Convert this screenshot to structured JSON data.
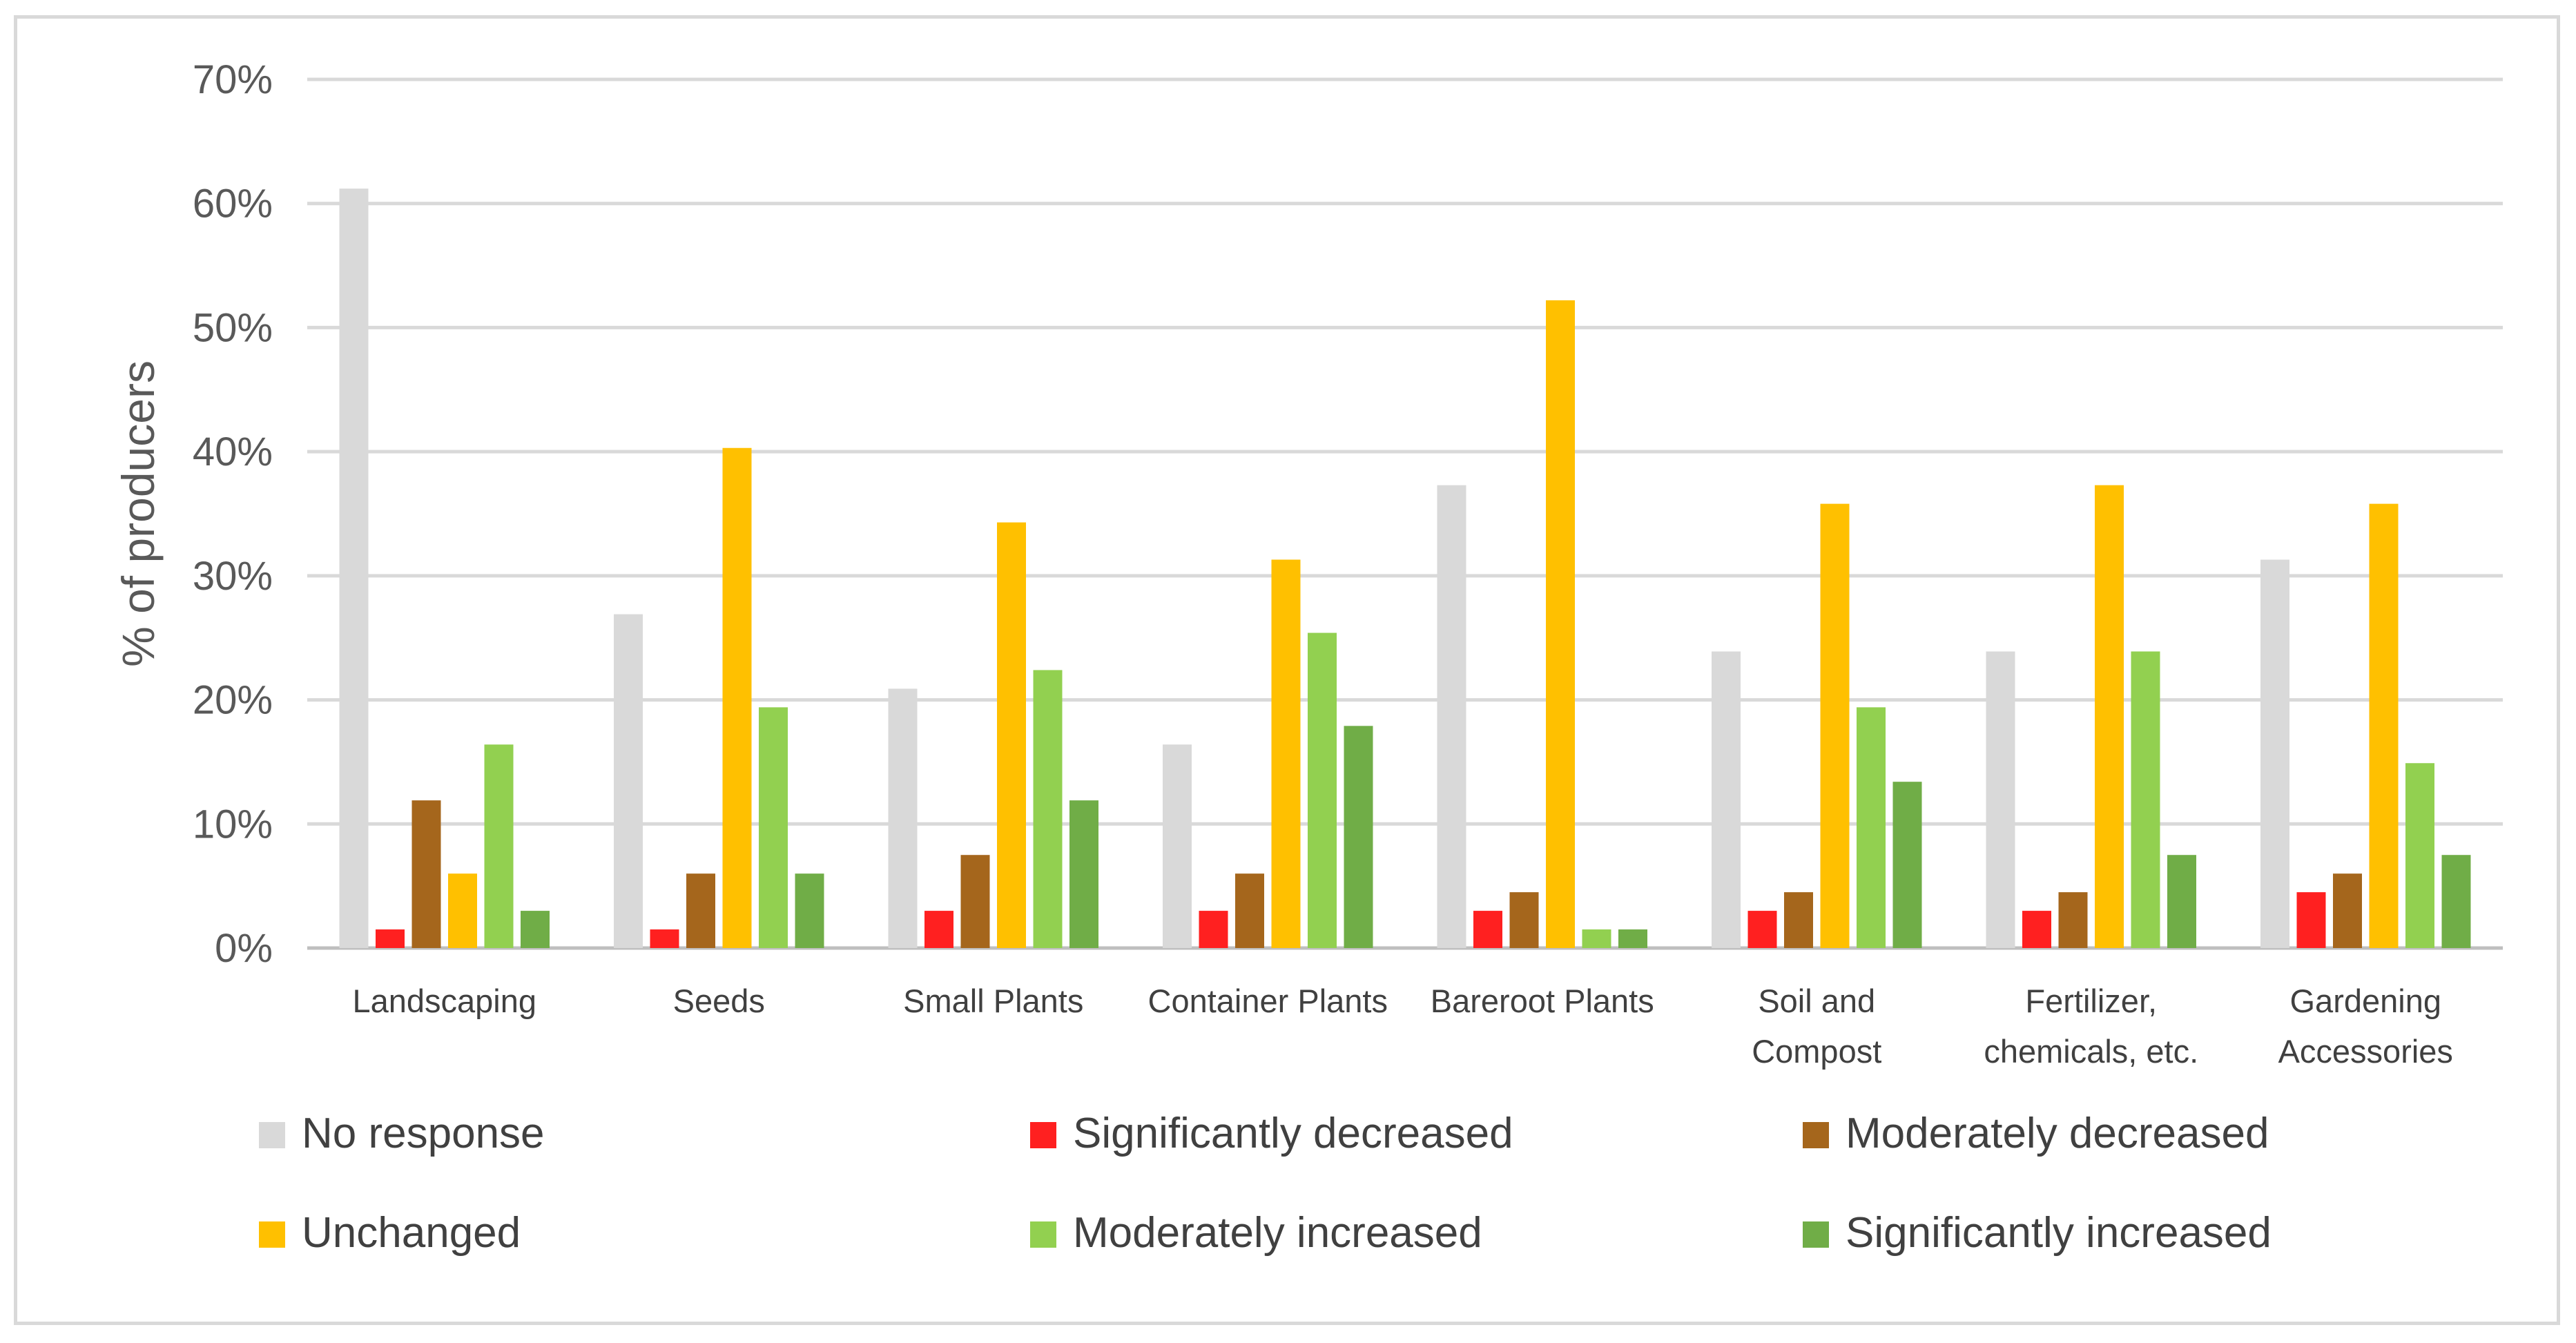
{
  "chart_data": {
    "type": "bar",
    "title": "",
    "xlabel": "",
    "ylabel": "% of producers",
    "ylim": [
      0,
      70
    ],
    "y_tick_step": 10,
    "y_tick_suffix": "%",
    "grid": true,
    "legend_position": "bottom",
    "categories": [
      [
        "Landscaping"
      ],
      [
        "Seeds"
      ],
      [
        "Small Plants"
      ],
      [
        "Container Plants"
      ],
      [
        "Bareroot Plants"
      ],
      [
        "Soil and",
        "Compost"
      ],
      [
        "Fertilizer,",
        "chemicals, etc."
      ],
      [
        "Gardening",
        "Accessories"
      ]
    ],
    "series": [
      {
        "name": "No response",
        "color": "#d9d9d9",
        "values": [
          61.2,
          26.9,
          20.9,
          16.4,
          37.3,
          23.9,
          23.9,
          31.3
        ]
      },
      {
        "name": "Significantly decreased",
        "color": "#ff2020",
        "values": [
          1.5,
          1.5,
          3.0,
          3.0,
          3.0,
          3.0,
          3.0,
          4.5
        ]
      },
      {
        "name": "Moderately decreased",
        "color": "#a5661c",
        "values": [
          11.9,
          6.0,
          7.5,
          6.0,
          4.5,
          4.5,
          4.5,
          6.0
        ]
      },
      {
        "name": "Unchanged",
        "color": "#ffc000",
        "values": [
          6.0,
          40.3,
          34.3,
          31.3,
          52.2,
          35.8,
          37.3,
          35.8
        ]
      },
      {
        "name": "Moderately increased",
        "color": "#92d050",
        "values": [
          16.4,
          19.4,
          22.4,
          25.4,
          1.5,
          19.4,
          23.9,
          14.9
        ]
      },
      {
        "name": "Significantly increased",
        "color": "#70ad47",
        "values": [
          3.0,
          6.0,
          11.9,
          17.9,
          1.5,
          13.4,
          7.5,
          7.5
        ]
      }
    ]
  }
}
